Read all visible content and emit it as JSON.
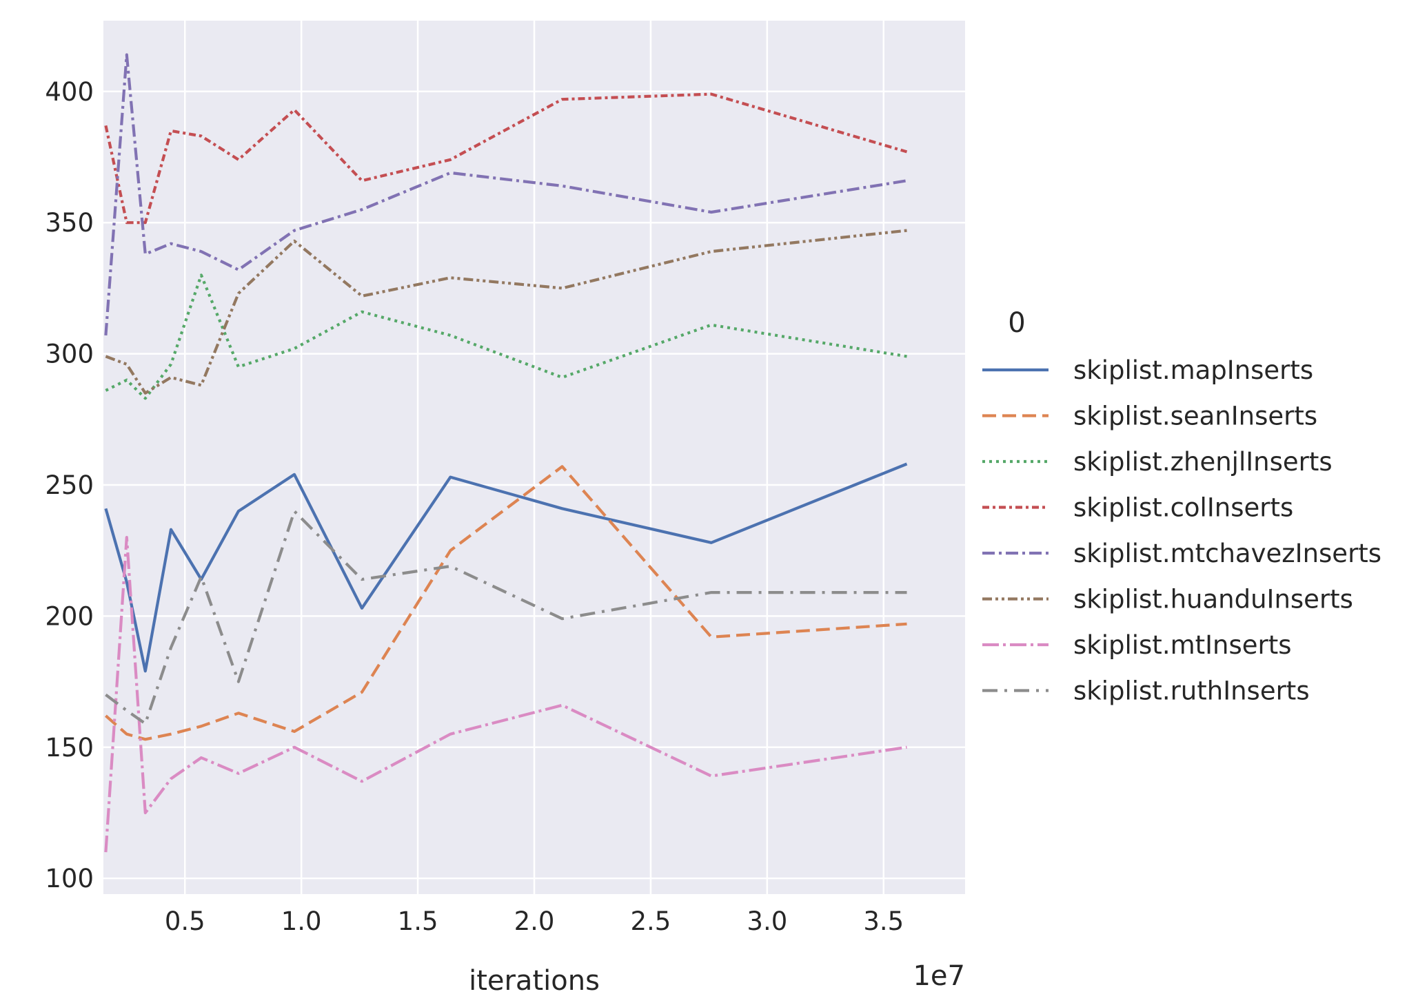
{
  "chart_data": {
    "type": "line",
    "title": "",
    "xlabel": "iterations",
    "ylabel": "",
    "x_offset_label": "1e7",
    "x_scale_multiplier": 10000000,
    "xlim": [
      0.15,
      3.85
    ],
    "ylim": [
      94,
      427
    ],
    "x_ticks": [
      0.5,
      1.0,
      1.5,
      2.0,
      2.5,
      3.0,
      3.5
    ],
    "x_tick_labels": [
      "0.5",
      "1.0",
      "1.5",
      "2.0",
      "2.5",
      "3.0",
      "3.5"
    ],
    "y_ticks": [
      100,
      150,
      200,
      250,
      300,
      350,
      400
    ],
    "y_tick_labels": [
      "100",
      "150",
      "200",
      "250",
      "300",
      "350",
      "400"
    ],
    "grid": true,
    "background": "#eaeaf2",
    "legend": {
      "title": "0",
      "position": "right-outside"
    },
    "x": [
      0.16,
      0.25,
      0.33,
      0.44,
      0.57,
      0.73,
      0.97,
      1.26,
      1.64,
      2.12,
      2.76,
      3.6
    ],
    "series": [
      {
        "name": "skiplist.mapInserts",
        "color": "#4c72b0",
        "dash": "solid",
        "values": [
          241,
          213,
          179,
          233,
          214,
          240,
          254,
          203,
          253,
          241,
          228,
          258
        ]
      },
      {
        "name": "skiplist.seanInserts",
        "color": "#dd8452",
        "dash": "dashed",
        "values": [
          162,
          155,
          153,
          155,
          158,
          163,
          156,
          171,
          225,
          257,
          192,
          197
        ]
      },
      {
        "name": "skiplist.zhenjlInserts",
        "color": "#55a868",
        "dash": "dotted",
        "values": [
          286,
          290,
          283,
          296,
          330,
          295,
          302,
          316,
          307,
          291,
          311,
          299
        ]
      },
      {
        "name": "skiplist.colInserts",
        "color": "#c44e52",
        "dash": "dash-dot-short",
        "values": [
          387,
          350,
          350,
          385,
          383,
          374,
          393,
          366,
          374,
          397,
          399,
          377
        ]
      },
      {
        "name": "skiplist.mtchavezInserts",
        "color": "#8172b3",
        "dash": "dash-dot",
        "values": [
          307,
          414,
          338,
          342,
          339,
          332,
          347,
          355,
          369,
          364,
          354,
          366
        ]
      },
      {
        "name": "skiplist.huanduInserts",
        "color": "#937860",
        "dash": "dash-dot-dot",
        "values": [
          299,
          296,
          285,
          291,
          288,
          323,
          343,
          322,
          329,
          325,
          339,
          347
        ]
      },
      {
        "name": "skiplist.mtInserts",
        "color": "#da8bc3",
        "dash": "long-dash-dot",
        "values": [
          110,
          230,
          125,
          138,
          146,
          140,
          150,
          137,
          155,
          166,
          139,
          150
        ]
      },
      {
        "name": "skiplist.ruthInserts",
        "color": "#8c8c8c",
        "dash": "long-dash-dot-sparse",
        "values": [
          170,
          164,
          159,
          188,
          215,
          175,
          240,
          214,
          219,
          199,
          209,
          209
        ]
      }
    ]
  }
}
